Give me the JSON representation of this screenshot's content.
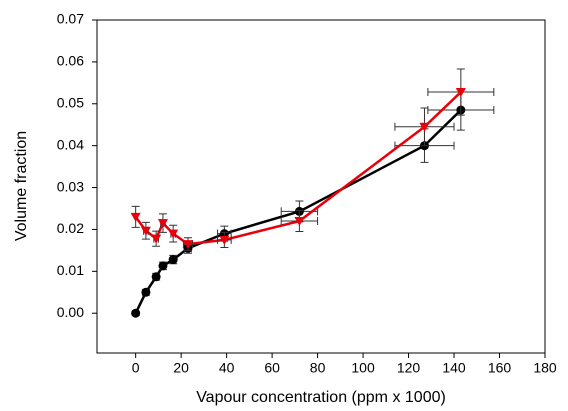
{
  "chart_data": {
    "type": "errorbar",
    "xlabel": "Vapour concentration (ppm x 1000)",
    "ylabel": "Volume fraction",
    "x": [
      0,
      4.5,
      9,
      12,
      16.5,
      23,
      39,
      72,
      127,
      143
    ],
    "series": [
      {
        "color": "#000000",
        "marker": "circle",
        "values": [
          0.0,
          0.005,
          0.0087,
          0.0113,
          0.0128,
          0.0155,
          0.019,
          0.0243,
          0.04,
          0.0485
        ],
        "y_err": [
          0.0005,
          0.0007,
          0.0008,
          0.0009,
          0.001,
          0.0012,
          0.0018,
          0.0025,
          0.004,
          0.0048
        ],
        "x_err": [
          0,
          0.5,
          0.8,
          1,
          1.2,
          1.5,
          3,
          8,
          13,
          14.5
        ]
      },
      {
        "color": "#e8000b",
        "marker": "triangle-down",
        "values": [
          0.023,
          0.0197,
          0.0178,
          0.0215,
          0.019,
          0.0165,
          0.0175,
          0.022,
          0.0445,
          0.0528
        ],
        "y_err": [
          0.0025,
          0.002,
          0.0018,
          0.0022,
          0.002,
          0.0015,
          0.0018,
          0.0025,
          0.0045,
          0.0055
        ],
        "x_err": [
          0,
          1,
          1,
          1,
          1,
          2,
          3,
          8,
          13,
          14.5
        ]
      }
    ],
    "xlim": [
      -17,
      180
    ],
    "ylim": [
      -0.0095,
      0.07
    ],
    "xticks": [
      0,
      20,
      40,
      60,
      80,
      100,
      120,
      140,
      160,
      180
    ],
    "yticks": [
      {
        "value": 0,
        "label": "0.00"
      },
      0.01,
      0.02,
      0.03,
      0.04,
      0.05,
      0.06,
      0.07
    ]
  }
}
